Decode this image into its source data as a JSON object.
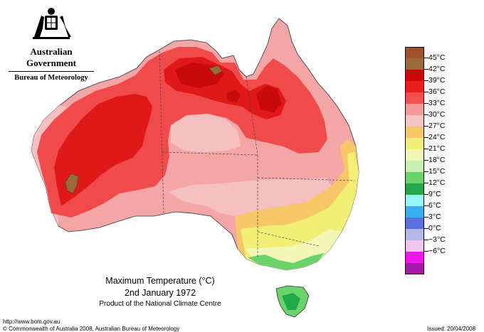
{
  "header": {
    "government": "Australian Government",
    "bureau": "Bureau of Meteorology"
  },
  "map": {
    "title": "Maximum Temperature (°C)",
    "date": "2nd January 1972",
    "product": "Product of the National Climate Centre",
    "colors": {
      "land_base": "#f4a6a6",
      "coast_warm": "#f7c0c0",
      "hot_36_39": "#f14a4a",
      "hot_39_42": "#e01818",
      "hot_42_45": "#c80a0a",
      "extreme_45": "#9a6a3a",
      "mild_27_30": "#f7c667",
      "cool_24_27": "#f2ef76",
      "cool_21_24": "#f3f7b5",
      "cool_18_21": "#c8f0b3",
      "cold_15_18": "#6ad36a",
      "cold_12_15": "#21a84a"
    }
  },
  "legend": {
    "items": [
      {
        "label": "45°C",
        "color": "#a0522d"
      },
      {
        "label": "42°C",
        "color": "#9a6a3a"
      },
      {
        "label": "39°C",
        "color": "#c80a0a"
      },
      {
        "label": "36°C",
        "color": "#e82020"
      },
      {
        "label": "33°C",
        "color": "#f35050"
      },
      {
        "label": "30°C",
        "color": "#f49a9a"
      },
      {
        "label": "27°C",
        "color": "#f7c4c4"
      },
      {
        "label": "24°C",
        "color": "#f7c667"
      },
      {
        "label": "21°C",
        "color": "#f2ef76"
      },
      {
        "label": "18°C",
        "color": "#f3f7b5"
      },
      {
        "label": "15°C",
        "color": "#c8f0b3"
      },
      {
        "label": "12°C",
        "color": "#6ad36a"
      },
      {
        "label": "9°C",
        "color": "#21a84a"
      },
      {
        "label": "6°C",
        "color": "#97f5f5"
      },
      {
        "label": "3°C",
        "color": "#38b0f0"
      },
      {
        "label": "0°C",
        "color": "#5a6fe0"
      },
      {
        "label": "−3°C",
        "color": "#b8b8e8"
      },
      {
        "label": "−6°C",
        "color": "#f3c4f0"
      },
      {
        "label": "",
        "color": "#f018f0"
      },
      {
        "label": "",
        "color": "#a818a8"
      }
    ]
  },
  "footer": {
    "url": "http://www.bom.gov.au",
    "copyright": "© Commonwealth of Australia 2008, Australian Bureau of Meteorology",
    "issued": "Issued: 20/04/2008"
  }
}
